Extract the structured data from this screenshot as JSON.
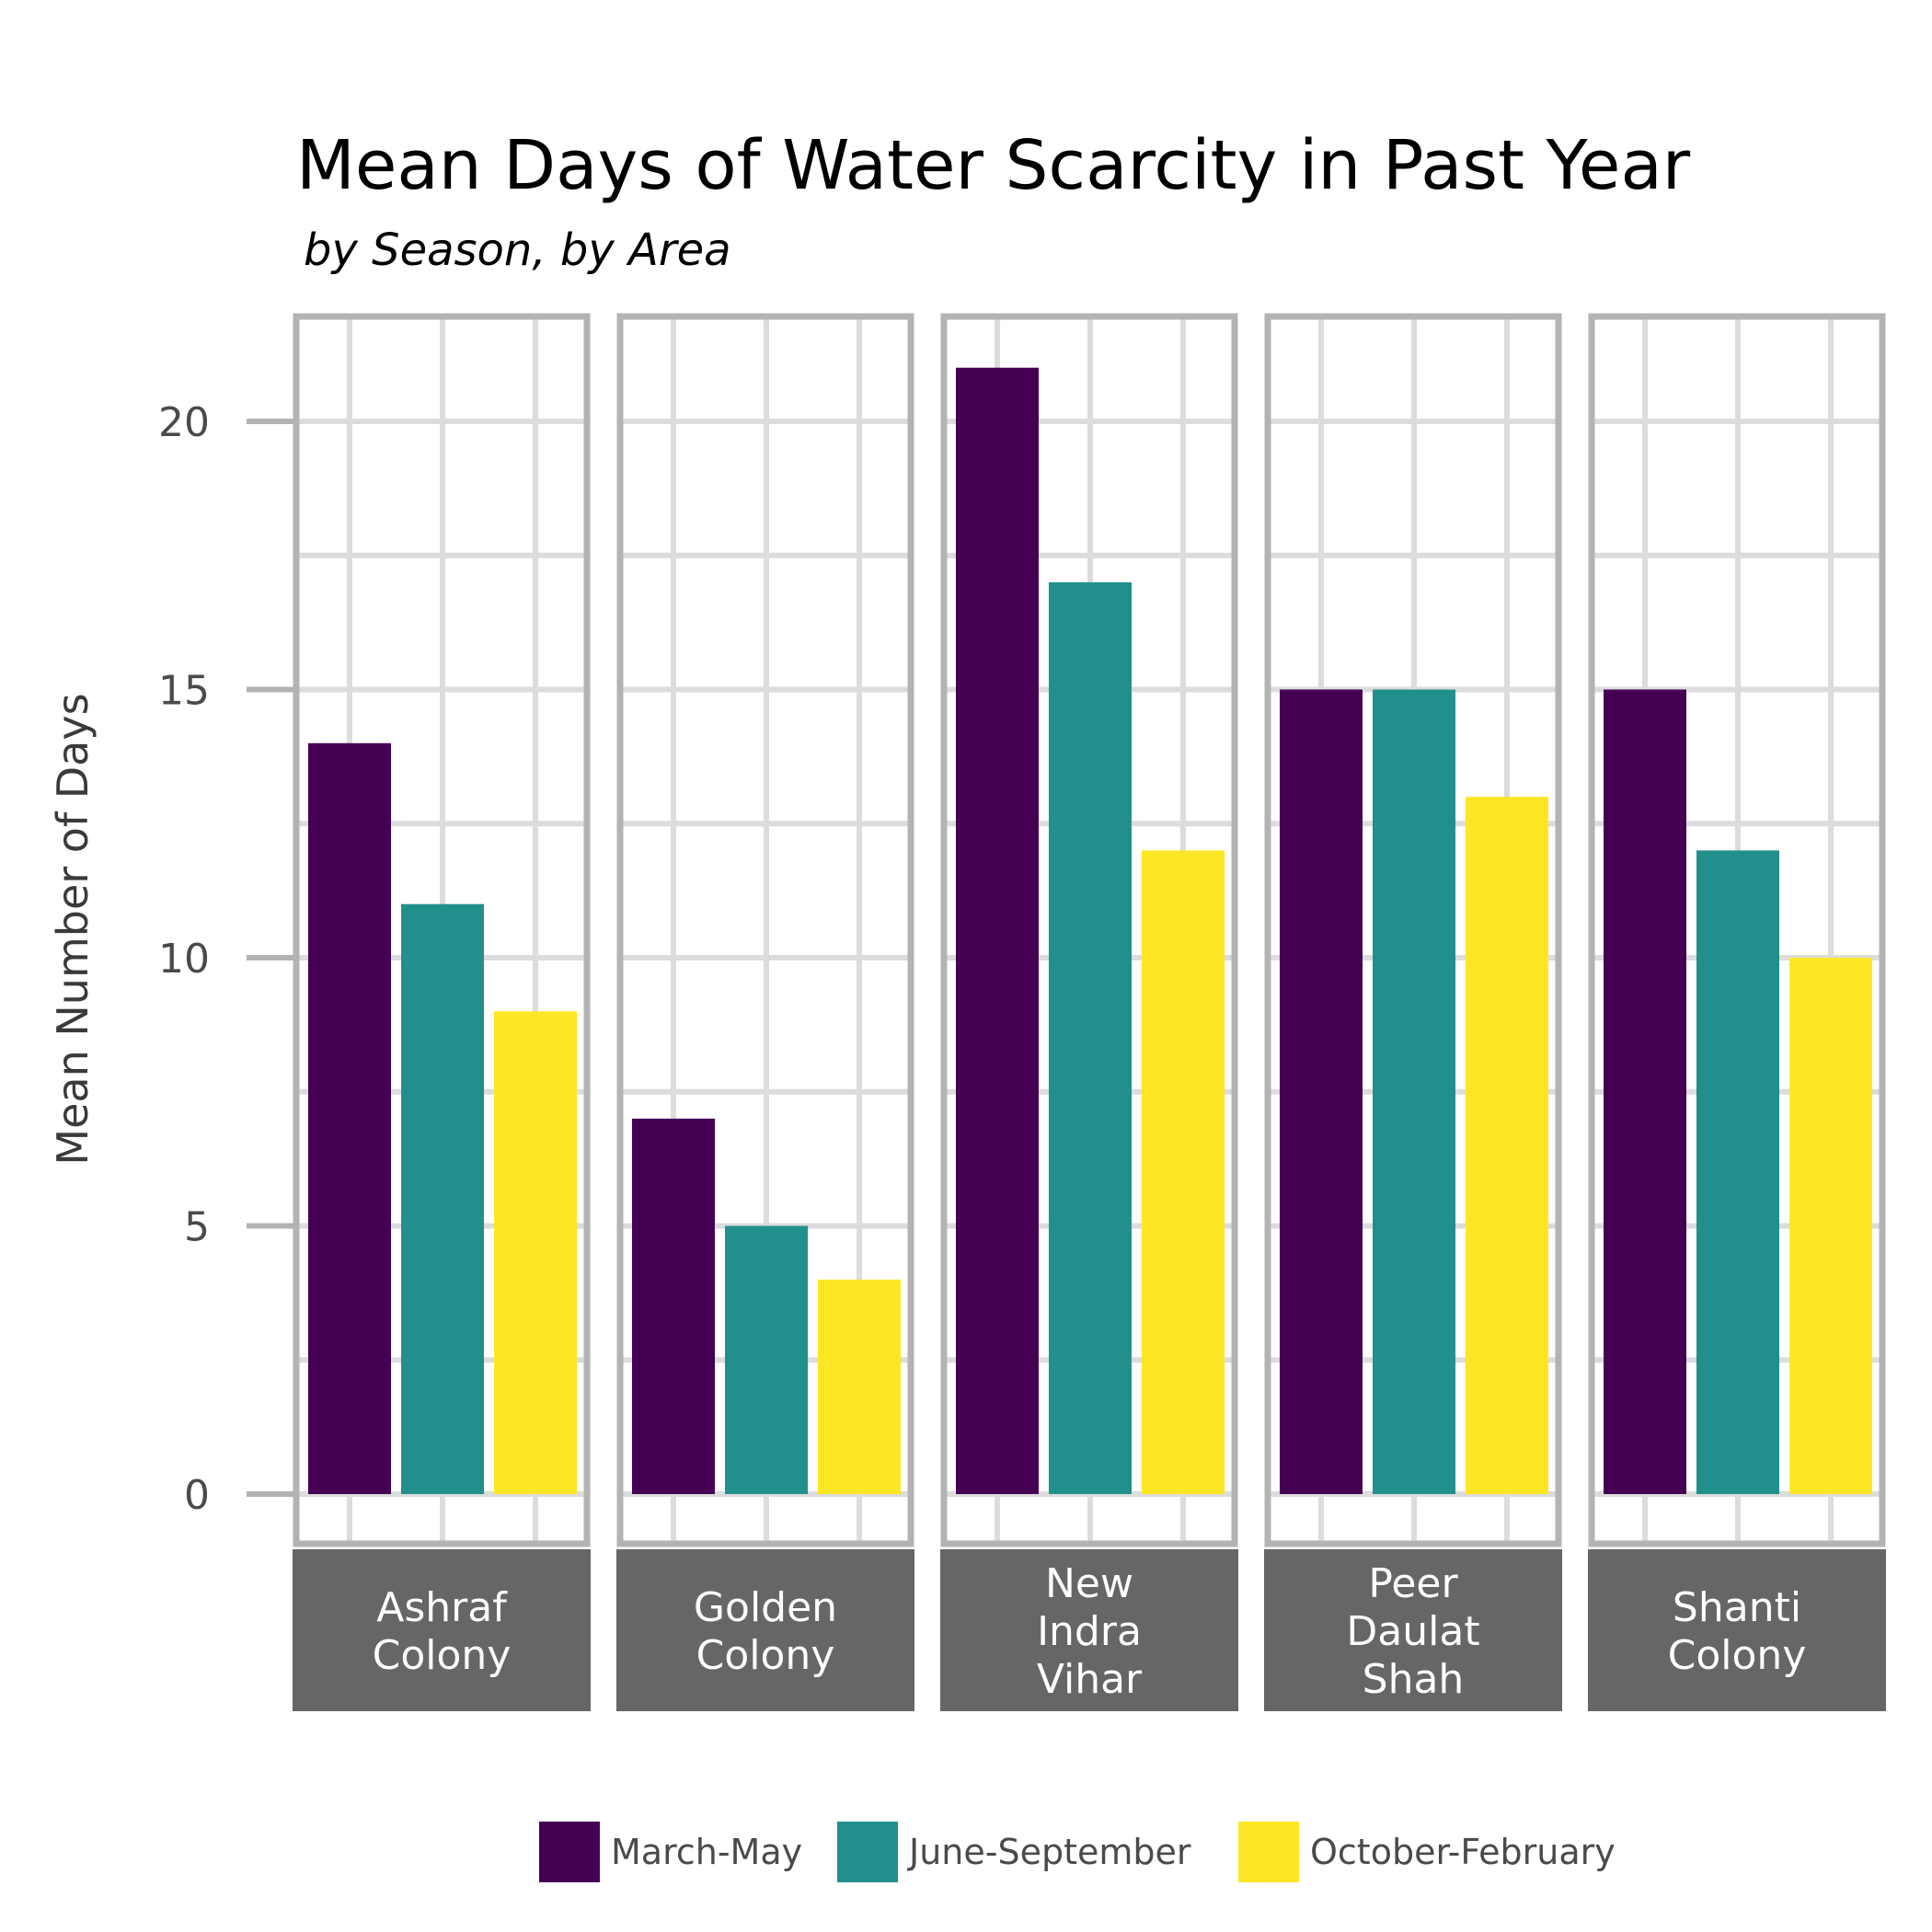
{
  "chart_data": {
    "type": "bar",
    "title": "Mean Days of Water Scarcity in Past Year",
    "subtitle": "by Season, by Area",
    "ylabel": "Mean Number of Days",
    "xlabel": "",
    "ylim": [
      0,
      22
    ],
    "yticks": [
      0,
      5,
      10,
      15,
      20
    ],
    "grid": true,
    "legend_position": "bottom",
    "facets": [
      "Ashraf Colony",
      "Golden Colony",
      "New Indra Vihar",
      "Peer Daulat Shah",
      "Shanti Colony"
    ],
    "series": [
      {
        "name": "March-May",
        "color": "#440154",
        "values": [
          14,
          7,
          21,
          15,
          15
        ]
      },
      {
        "name": "June-September",
        "color": "#21908C",
        "values": [
          11,
          5,
          17,
          15,
          12
        ]
      },
      {
        "name": "October-February",
        "color": "#FDE725",
        "values": [
          9,
          4,
          12,
          13,
          10
        ]
      }
    ]
  },
  "colors": {
    "panel_border": "#b3b3b3",
    "grid": "#dcdcdc",
    "strip_background": "#666666"
  }
}
